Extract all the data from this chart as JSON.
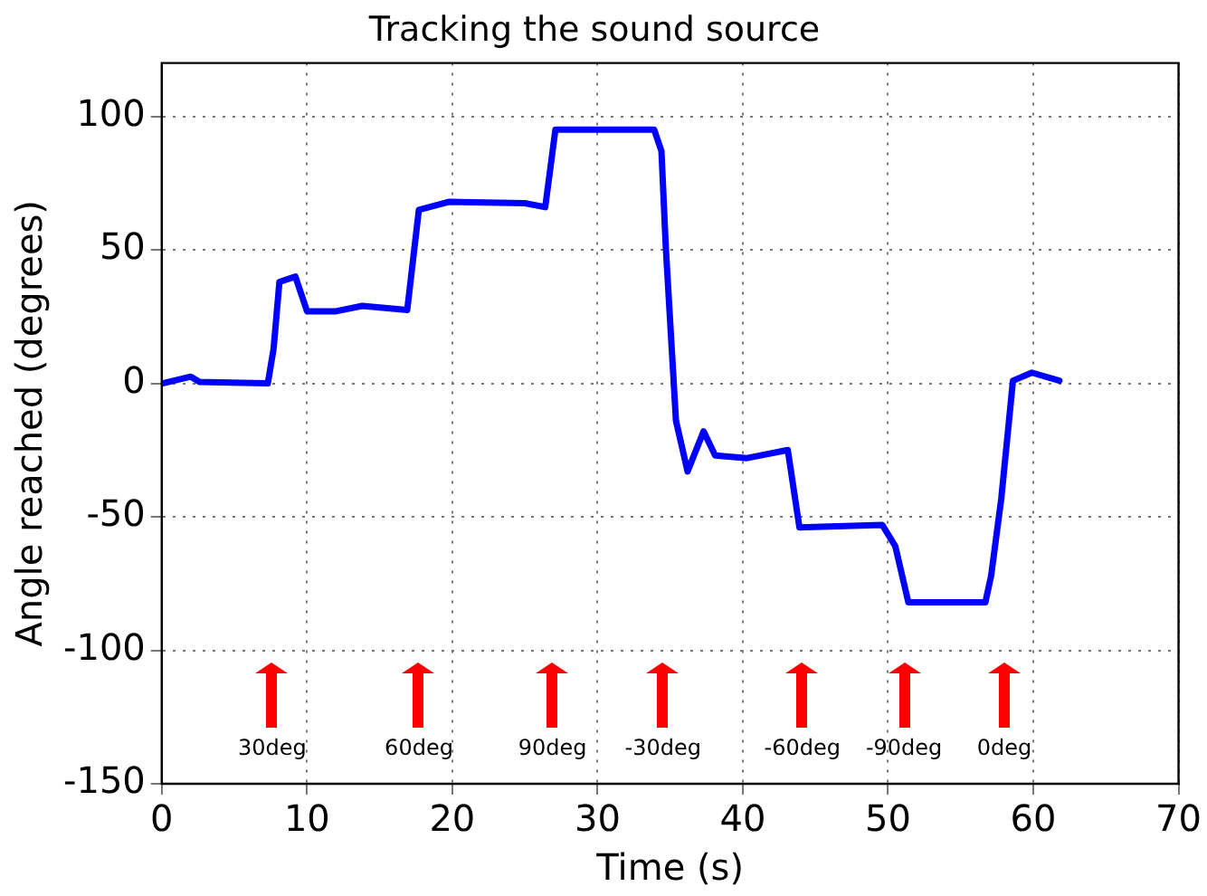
{
  "chart_data": {
    "type": "line",
    "title": "Tracking the sound source",
    "xlabel": "Time (s)",
    "ylabel": "Angle reached (degrees)",
    "xlim": [
      0,
      70
    ],
    "xticks": [
      0,
      10,
      20,
      30,
      40,
      50,
      60,
      70
    ],
    "ylim": [
      -150,
      120
    ],
    "yticks": [
      -150,
      -100,
      -50,
      0,
      50,
      100
    ],
    "grid": true,
    "line_style": "solid",
    "marker": "none",
    "series": [
      {
        "color": "#0000ff",
        "x": [
          0.05,
          2.0,
          2.6,
          7.3,
          7.7,
          8.1,
          9.2,
          10.0,
          12.0,
          13.8,
          16.9,
          17.7,
          19.8,
          25.0,
          26.4,
          27.1,
          33.9,
          34.4,
          34.7,
          35.4,
          36.2,
          37.3,
          38.1,
          40.3,
          43.1,
          43.9,
          49.6,
          50.5,
          51.4,
          56.7,
          57.1,
          57.8,
          58.6,
          59.9,
          61.8
        ],
        "values": [
          0,
          2.5,
          0.5,
          0,
          13,
          38,
          40,
          27,
          27,
          29,
          27.5,
          65,
          68,
          67.5,
          66,
          95,
          95,
          87,
          51,
          -14,
          -33,
          -18,
          -27,
          -28,
          -25,
          -54,
          -53,
          -61,
          -82,
          -82,
          -72,
          -43,
          1,
          4,
          1
        ]
      }
    ],
    "annotations": [
      "30deg",
      "60deg",
      "90deg",
      "-30deg",
      "-60deg",
      "-90deg",
      "0deg"
    ]
  }
}
